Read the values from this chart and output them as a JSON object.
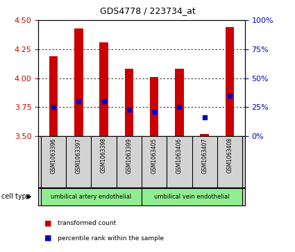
{
  "title": "GDS4778 / 223734_at",
  "samples": [
    "GSM1063396",
    "GSM1063397",
    "GSM1063398",
    "GSM1063399",
    "GSM1063405",
    "GSM1063406",
    "GSM1063407",
    "GSM1063408"
  ],
  "bar_tops": [
    4.19,
    4.43,
    4.31,
    4.08,
    4.01,
    4.08,
    3.52,
    4.44
  ],
  "bar_base": 3.5,
  "percentile_values": [
    25,
    30,
    30,
    23,
    21,
    25,
    16,
    35
  ],
  "ylim": [
    3.5,
    4.5
  ],
  "yticks": [
    3.5,
    3.75,
    4.0,
    4.25,
    4.5
  ],
  "right_ylim": [
    0,
    100
  ],
  "right_yticks": [
    0,
    25,
    50,
    75,
    100
  ],
  "right_yticklabels": [
    "0%",
    "25%",
    "50%",
    "75%",
    "100%"
  ],
  "bar_color": "#cc0000",
  "blue_color": "#0000cc",
  "groups": [
    {
      "label": "umbilical artery endothelial",
      "start": 0,
      "end": 4,
      "color": "#90ee90"
    },
    {
      "label": "umbilical vein endothelial",
      "start": 4,
      "end": 8,
      "color": "#90ee90"
    }
  ],
  "cell_type_label": "cell type",
  "legend_red": "transformed count",
  "legend_blue": "percentile rank within the sample",
  "tick_color_left": "#cc0000",
  "tick_color_right": "#0000cc"
}
